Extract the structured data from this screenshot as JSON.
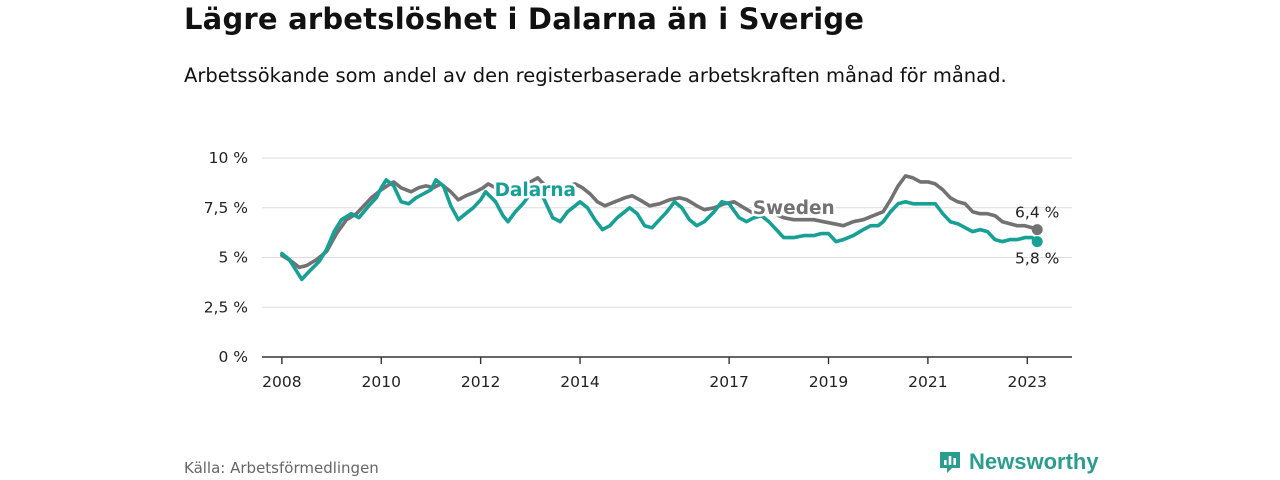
{
  "title": "Lägre arbetslöshet i Dalarna än i Sverige",
  "subtitle": "Arbetssökande som andel av den registerbaserade arbetskraften månad för månad.",
  "source": "Källa: Arbetsförmedlingen",
  "brand": {
    "name": "Newsworthy",
    "icon": "newsworthy-logo-icon"
  },
  "colors": {
    "dalarna": "#17a096",
    "sweden": "#727272",
    "grid": "#dddddd",
    "axis": "#333333"
  },
  "chart_data": {
    "type": "line",
    "title": "Lägre arbetslöshet i Dalarna än i Sverige",
    "subtitle": "Arbetssökande som andel av den registerbaserade arbetskraften månad för månad.",
    "xlabel": "",
    "ylabel": "",
    "ylim": [
      0,
      10
    ],
    "xlim": [
      2007.6,
      2023.9
    ],
    "grid": true,
    "yticks": [
      {
        "value": 0,
        "label": "0 %"
      },
      {
        "value": 2.5,
        "label": "2,5 %"
      },
      {
        "value": 5,
        "label": "5 %"
      },
      {
        "value": 7.5,
        "label": "7,5 %"
      },
      {
        "value": 10,
        "label": "10 %"
      }
    ],
    "xticks": [
      {
        "value": 2008,
        "label": "2008"
      },
      {
        "value": 2010,
        "label": "2010"
      },
      {
        "value": 2012,
        "label": "2012"
      },
      {
        "value": 2014,
        "label": "2014"
      },
      {
        "value": 2017,
        "label": "2017"
      },
      {
        "value": 2019,
        "label": "2019"
      },
      {
        "value": 2021,
        "label": "2021"
      },
      {
        "value": 2023,
        "label": "2023"
      }
    ],
    "series": [
      {
        "name": "Sweden",
        "color": "#727272",
        "end_label": "6,4 %",
        "points": [
          [
            2008.0,
            5.1
          ],
          [
            2008.2,
            4.8
          ],
          [
            2008.35,
            4.5
          ],
          [
            2008.5,
            4.6
          ],
          [
            2008.7,
            4.9
          ],
          [
            2008.9,
            5.3
          ],
          [
            2009.1,
            6.2
          ],
          [
            2009.3,
            6.9
          ],
          [
            2009.5,
            7.2
          ],
          [
            2009.65,
            7.6
          ],
          [
            2009.8,
            8.0
          ],
          [
            2010.0,
            8.4
          ],
          [
            2010.12,
            8.6
          ],
          [
            2010.25,
            8.8
          ],
          [
            2010.4,
            8.5
          ],
          [
            2010.6,
            8.3
          ],
          [
            2010.75,
            8.5
          ],
          [
            2010.9,
            8.6
          ],
          [
            2011.05,
            8.5
          ],
          [
            2011.2,
            8.7
          ],
          [
            2011.4,
            8.3
          ],
          [
            2011.55,
            7.9
          ],
          [
            2011.7,
            8.1
          ],
          [
            2011.9,
            8.3
          ],
          [
            2012.05,
            8.5
          ],
          [
            2012.15,
            8.7
          ],
          [
            2012.3,
            8.5
          ],
          [
            2012.5,
            8.2
          ],
          [
            2012.7,
            8.4
          ],
          [
            2012.85,
            8.6
          ],
          [
            2013.0,
            8.8
          ],
          [
            2013.15,
            9.0
          ],
          [
            2013.3,
            8.6
          ],
          [
            2013.45,
            8.3
          ],
          [
            2013.6,
            8.5
          ],
          [
            2013.75,
            8.6
          ],
          [
            2013.9,
            8.7
          ],
          [
            2014.05,
            8.5
          ],
          [
            2014.2,
            8.2
          ],
          [
            2014.35,
            7.8
          ],
          [
            2014.5,
            7.6
          ],
          [
            2014.7,
            7.8
          ],
          [
            2014.9,
            8.0
          ],
          [
            2015.05,
            8.1
          ],
          [
            2015.2,
            7.9
          ],
          [
            2015.4,
            7.6
          ],
          [
            2015.6,
            7.7
          ],
          [
            2015.8,
            7.9
          ],
          [
            2016.0,
            8.0
          ],
          [
            2016.15,
            7.9
          ],
          [
            2016.35,
            7.6
          ],
          [
            2016.5,
            7.4
          ],
          [
            2016.7,
            7.5
          ],
          [
            2016.9,
            7.7
          ],
          [
            2017.1,
            7.8
          ],
          [
            2017.3,
            7.5
          ],
          [
            2017.5,
            7.2
          ],
          [
            2017.7,
            7.3
          ],
          [
            2017.9,
            7.2
          ],
          [
            2018.1,
            7.0
          ],
          [
            2018.3,
            6.9
          ],
          [
            2018.5,
            6.9
          ],
          [
            2018.7,
            6.9
          ],
          [
            2018.9,
            6.8
          ],
          [
            2019.1,
            6.7
          ],
          [
            2019.3,
            6.6
          ],
          [
            2019.5,
            6.8
          ],
          [
            2019.7,
            6.9
          ],
          [
            2019.9,
            7.1
          ],
          [
            2020.1,
            7.3
          ],
          [
            2020.25,
            7.9
          ],
          [
            2020.4,
            8.6
          ],
          [
            2020.55,
            9.1
          ],
          [
            2020.7,
            9.0
          ],
          [
            2020.85,
            8.8
          ],
          [
            2021.0,
            8.8
          ],
          [
            2021.15,
            8.7
          ],
          [
            2021.3,
            8.4
          ],
          [
            2021.45,
            8.0
          ],
          [
            2021.6,
            7.8
          ],
          [
            2021.75,
            7.7
          ],
          [
            2021.9,
            7.3
          ],
          [
            2022.05,
            7.2
          ],
          [
            2022.2,
            7.2
          ],
          [
            2022.35,
            7.1
          ],
          [
            2022.5,
            6.8
          ],
          [
            2022.65,
            6.7
          ],
          [
            2022.8,
            6.6
          ],
          [
            2022.95,
            6.6
          ],
          [
            2023.1,
            6.5
          ],
          [
            2023.2,
            6.4
          ]
        ]
      },
      {
        "name": "Dalarna",
        "color": "#17a096",
        "end_label": "5,8 %",
        "points": [
          [
            2008.0,
            5.2
          ],
          [
            2008.15,
            4.9
          ],
          [
            2008.3,
            4.3
          ],
          [
            2008.4,
            3.9
          ],
          [
            2008.55,
            4.3
          ],
          [
            2008.75,
            4.8
          ],
          [
            2008.9,
            5.4
          ],
          [
            2009.05,
            6.3
          ],
          [
            2009.2,
            6.9
          ],
          [
            2009.4,
            7.2
          ],
          [
            2009.55,
            7.0
          ],
          [
            2009.75,
            7.6
          ],
          [
            2009.9,
            8.0
          ],
          [
            2010.0,
            8.5
          ],
          [
            2010.1,
            8.9
          ],
          [
            2010.25,
            8.6
          ],
          [
            2010.4,
            7.8
          ],
          [
            2010.55,
            7.7
          ],
          [
            2010.7,
            8.0
          ],
          [
            2010.85,
            8.2
          ],
          [
            2011.0,
            8.4
          ],
          [
            2011.1,
            8.9
          ],
          [
            2011.25,
            8.6
          ],
          [
            2011.4,
            7.6
          ],
          [
            2011.55,
            6.9
          ],
          [
            2011.7,
            7.2
          ],
          [
            2011.85,
            7.5
          ],
          [
            2012.0,
            7.9
          ],
          [
            2012.1,
            8.3
          ],
          [
            2012.3,
            7.8
          ],
          [
            2012.45,
            7.1
          ],
          [
            2012.55,
            6.8
          ],
          [
            2012.7,
            7.3
          ],
          [
            2012.85,
            7.7
          ],
          [
            2013.0,
            8.2
          ],
          [
            2013.15,
            8.6
          ],
          [
            2013.3,
            7.8
          ],
          [
            2013.45,
            7.0
          ],
          [
            2013.6,
            6.8
          ],
          [
            2013.75,
            7.3
          ],
          [
            2013.9,
            7.6
          ],
          [
            2014.0,
            7.8
          ],
          [
            2014.15,
            7.5
          ],
          [
            2014.3,
            6.9
          ],
          [
            2014.45,
            6.4
          ],
          [
            2014.6,
            6.6
          ],
          [
            2014.75,
            7.0
          ],
          [
            2014.9,
            7.3
          ],
          [
            2015.0,
            7.5
          ],
          [
            2015.15,
            7.2
          ],
          [
            2015.3,
            6.6
          ],
          [
            2015.45,
            6.5
          ],
          [
            2015.6,
            6.9
          ],
          [
            2015.75,
            7.3
          ],
          [
            2015.9,
            7.8
          ],
          [
            2016.05,
            7.5
          ],
          [
            2016.2,
            6.9
          ],
          [
            2016.35,
            6.6
          ],
          [
            2016.5,
            6.8
          ],
          [
            2016.7,
            7.3
          ],
          [
            2016.85,
            7.8
          ],
          [
            2017.0,
            7.7
          ],
          [
            2017.2,
            7.0
          ],
          [
            2017.35,
            6.8
          ],
          [
            2017.5,
            7.0
          ],
          [
            2017.65,
            7.1
          ],
          [
            2017.8,
            6.8
          ],
          [
            2017.95,
            6.4
          ],
          [
            2018.1,
            6.0
          ],
          [
            2018.3,
            6.0
          ],
          [
            2018.5,
            6.1
          ],
          [
            2018.7,
            6.1
          ],
          [
            2018.85,
            6.2
          ],
          [
            2019.0,
            6.2
          ],
          [
            2019.15,
            5.8
          ],
          [
            2019.3,
            5.9
          ],
          [
            2019.5,
            6.1
          ],
          [
            2019.7,
            6.4
          ],
          [
            2019.85,
            6.6
          ],
          [
            2020.0,
            6.6
          ],
          [
            2020.1,
            6.8
          ],
          [
            2020.25,
            7.3
          ],
          [
            2020.4,
            7.7
          ],
          [
            2020.55,
            7.8
          ],
          [
            2020.7,
            7.7
          ],
          [
            2020.85,
            7.7
          ],
          [
            2021.0,
            7.7
          ],
          [
            2021.15,
            7.7
          ],
          [
            2021.3,
            7.2
          ],
          [
            2021.45,
            6.8
          ],
          [
            2021.6,
            6.7
          ],
          [
            2021.75,
            6.5
          ],
          [
            2021.9,
            6.3
          ],
          [
            2022.05,
            6.4
          ],
          [
            2022.2,
            6.3
          ],
          [
            2022.35,
            5.9
          ],
          [
            2022.5,
            5.8
          ],
          [
            2022.65,
            5.9
          ],
          [
            2022.8,
            5.9
          ],
          [
            2022.95,
            6.0
          ],
          [
            2023.1,
            6.0
          ],
          [
            2023.2,
            5.8
          ]
        ]
      }
    ],
    "annotations": [
      {
        "text": "Dalarna",
        "series": "Dalarna",
        "x": 2013.1,
        "y": 8.4
      },
      {
        "text": "Sweden",
        "series": "Sweden",
        "x": 2018.3,
        "y": 7.5
      }
    ]
  }
}
